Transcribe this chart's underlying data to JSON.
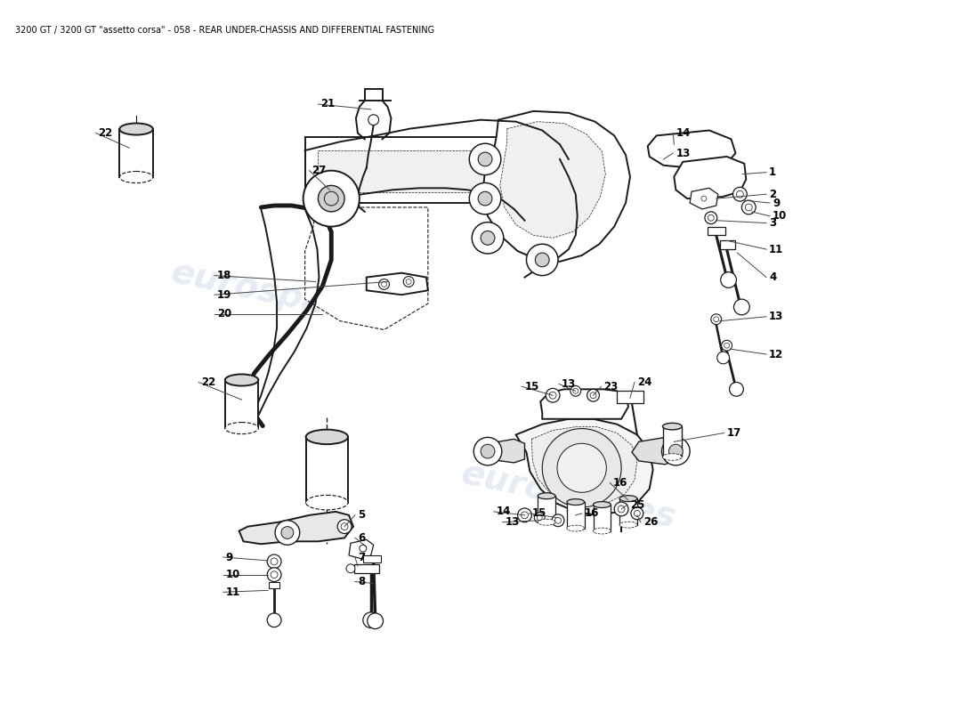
{
  "title": "3200 GT / 3200 GT \"assetto corsa\" - 058 - REAR UNDER-CHASSIS AND DIFFERENTIAL FASTENING",
  "title_fontsize": 7.0,
  "title_color": "#000000",
  "background_color": "#ffffff",
  "watermark_text": "eurospares",
  "watermark_color": "#c8d4e8",
  "watermark_alpha": 0.45,
  "line_color": "#1a1a1a",
  "part_label_fontsize": 8.5,
  "lw_main": 1.4,
  "lw_thin": 0.8,
  "lw_label": 0.7
}
